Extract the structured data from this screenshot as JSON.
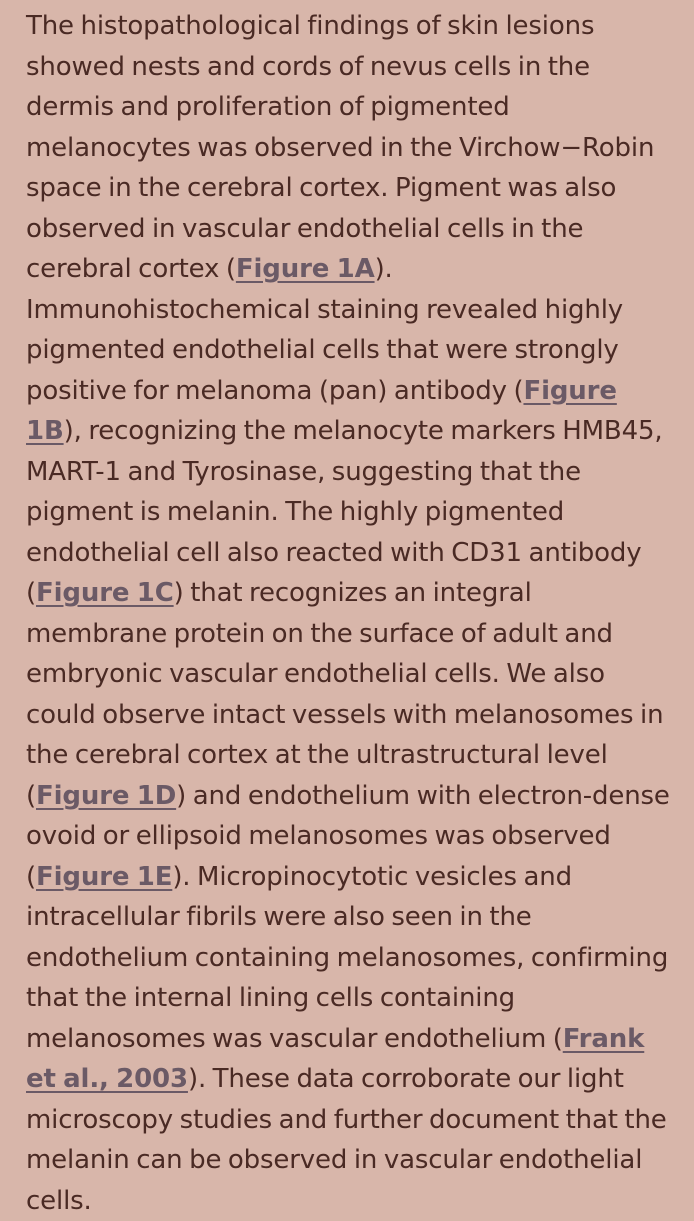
{
  "article": {
    "segments": [
      {
        "type": "text",
        "text": "The histopathological findings of skin lesions showed nests and cords of nevus cells in the dermis and proliferation of pigmented melanocytes was observed in the Virchow−Robin space in the cerebral cortex. Pigment was also observed in vascular endothelial cells in the cerebral cortex ("
      },
      {
        "type": "link",
        "name": "figure-1a-link",
        "text": "Figure 1A"
      },
      {
        "type": "text",
        "text": "). Immunohistochemical staining revealed highly pigmented endothelial cells that were strongly positive for melanoma (pan) antibody ("
      },
      {
        "type": "link",
        "name": "figure-1b-link",
        "text": "Figure 1B"
      },
      {
        "type": "text",
        "text": "), recognizing the melanocyte markers HMB45, MART-1 and Tyrosinase, suggesting that the pigment is melanin. The highly pigmented endothelial cell also reacted with CD31 antibody ("
      },
      {
        "type": "link",
        "name": "figure-1c-link",
        "text": "Figure 1C"
      },
      {
        "type": "text",
        "text": ") that recognizes an integral membrane protein on the surface of adult and embryonic vascular endothelial cells. We also could observe intact vessels with melanosomes in the cerebral cortex at the ultrastructural level ("
      },
      {
        "type": "link",
        "name": "figure-1d-link",
        "text": "Figure 1D"
      },
      {
        "type": "text",
        "text": ") and endothelium with electron-dense ovoid or ellipsoid melanosomes was observed ("
      },
      {
        "type": "link",
        "name": "figure-1e-link",
        "text": "Figure 1E"
      },
      {
        "type": "text",
        "text": "). Micropinocytotic vesicles and intracellular fibrils were also seen in the endothelium containing melanosomes, confirming that the internal lining cells containing melanosomes was vascular endothelium ("
      },
      {
        "type": "link",
        "name": "frank-2003-citation-link",
        "text": "Frank et al., 2003"
      },
      {
        "type": "text",
        "text": "). These data corroborate our light microscopy studies and further document that the melanin can be observed in vascular endothelial cells."
      }
    ]
  },
  "colors": {
    "background": "#d8b6aa",
    "text": "#4a2a24",
    "link": "#6b5a66"
  }
}
